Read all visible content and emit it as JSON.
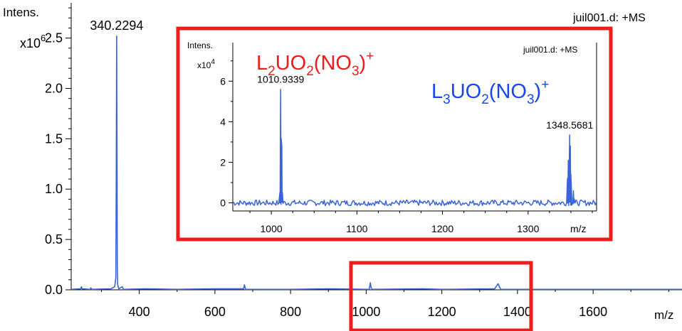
{
  "chart_data": [
    {
      "type": "line",
      "role": "main",
      "y_label": "Intens.",
      "y_multiplier_base": "x10",
      "y_multiplier_exp": "6",
      "x_label": "m/z",
      "file_label": "juil001.d: +MS",
      "xlim": [
        220,
        1835
      ],
      "ylim": [
        0,
        2.85
      ],
      "x_ticks": [
        400,
        600,
        800,
        1000,
        1200,
        1400,
        1600
      ],
      "y_ticks": [
        0.0,
        0.5,
        1.0,
        1.5,
        2.0,
        2.5
      ],
      "y_tick_labels": [
        "0.0",
        "0.5",
        "1.0",
        "1.5",
        "2.0",
        "2.5"
      ],
      "series": [
        {
          "color": "#3a64d8",
          "points": [
            [
              220,
              0.005
            ],
            [
              245,
              0.01
            ],
            [
              247,
              0.03
            ],
            [
              249,
              0.01
            ],
            [
              270,
              0.005
            ],
            [
              272,
              0.02
            ],
            [
              274,
              0.005
            ],
            [
              325,
              0.01
            ],
            [
              330,
              0.02
            ],
            [
              335,
              0.03
            ],
            [
              338,
              0.12
            ],
            [
              339,
              0.9
            ],
            [
              340.2,
              2.52
            ],
            [
              341.2,
              1.2
            ],
            [
              342,
              0.25
            ],
            [
              343,
              0.05
            ],
            [
              346,
              0.01
            ],
            [
              355,
              0.03
            ],
            [
              358,
              0.005
            ],
            [
              420,
              0.01
            ],
            [
              500,
              0.005
            ],
            [
              600,
              0.01
            ],
            [
              676,
              0.01
            ],
            [
              678,
              0.05
            ],
            [
              680,
              0.02
            ],
            [
              682,
              0.005
            ],
            [
              800,
              0.005
            ],
            [
              900,
              0.01
            ],
            [
              1008,
              0.005
            ],
            [
              1010.9,
              0.07
            ],
            [
              1013,
              0.02
            ],
            [
              1016,
              0.005
            ],
            [
              1150,
              0.01
            ],
            [
              1200,
              0.005
            ],
            [
              1340,
              0.01
            ],
            [
              1345,
              0.04
            ],
            [
              1348.6,
              0.06
            ],
            [
              1352,
              0.03
            ],
            [
              1356,
              0.005
            ],
            [
              1500,
              0.005
            ],
            [
              1700,
              0.005
            ],
            [
              1835,
              0.005
            ]
          ]
        }
      ],
      "annotations": [
        {
          "text": "340.2294",
          "x": 340.2294,
          "y": 2.52
        }
      ],
      "highlight_range": {
        "x": [
          937,
          1405
        ],
        "y": [
          -0.12,
          0.27
        ],
        "color": "#ee1c1c"
      }
    },
    {
      "type": "line",
      "role": "inset",
      "y_label": "Intens.",
      "y_multiplier_base": "x10",
      "y_multiplier_exp": "4",
      "x_label": "m/z",
      "file_label": "juil001.d: +MS",
      "xlim": [
        955,
        1380
      ],
      "ylim": [
        -0.4,
        7.9
      ],
      "x_ticks": [
        1000,
        1100,
        1200,
        1300
      ],
      "y_ticks": [
        0,
        2,
        4,
        6
      ],
      "series": [
        {
          "color": "#3a64d8",
          "noise": true,
          "points": [
            [
              1009,
              0
            ],
            [
              1010,
              0.5
            ],
            [
              1010.9,
              5.6
            ],
            [
              1011.5,
              3.2
            ],
            [
              1012.3,
              2.8
            ],
            [
              1013,
              0.5
            ],
            [
              1014,
              0
            ],
            [
              1345,
              0
            ],
            [
              1346,
              1.2
            ],
            [
              1347,
              2.1
            ],
            [
              1348.6,
              3.35
            ],
            [
              1349.4,
              2.8
            ],
            [
              1350,
              1.4
            ],
            [
              1351,
              0.3
            ],
            [
              1352,
              0
            ],
            [
              1353,
              0.6
            ],
            [
              1353.8,
              0.2
            ],
            [
              1355,
              0
            ]
          ]
        }
      ],
      "annotations": [
        {
          "text": "1010.9339",
          "x": 1010.9339,
          "y": 5.6
        },
        {
          "text": "1348.5681",
          "x": 1348.5681,
          "y": 3.35
        }
      ],
      "formula_labels": [
        {
          "color": "#ee1c1c",
          "parts": [
            "L",
            "2",
            "UO",
            "2",
            "(NO",
            "3",
            ")",
            "+"
          ]
        },
        {
          "color": "#1a46f0",
          "parts": [
            "L",
            "3",
            "UO",
            "2",
            "(NO",
            "3",
            ")",
            "+"
          ]
        }
      ]
    }
  ]
}
